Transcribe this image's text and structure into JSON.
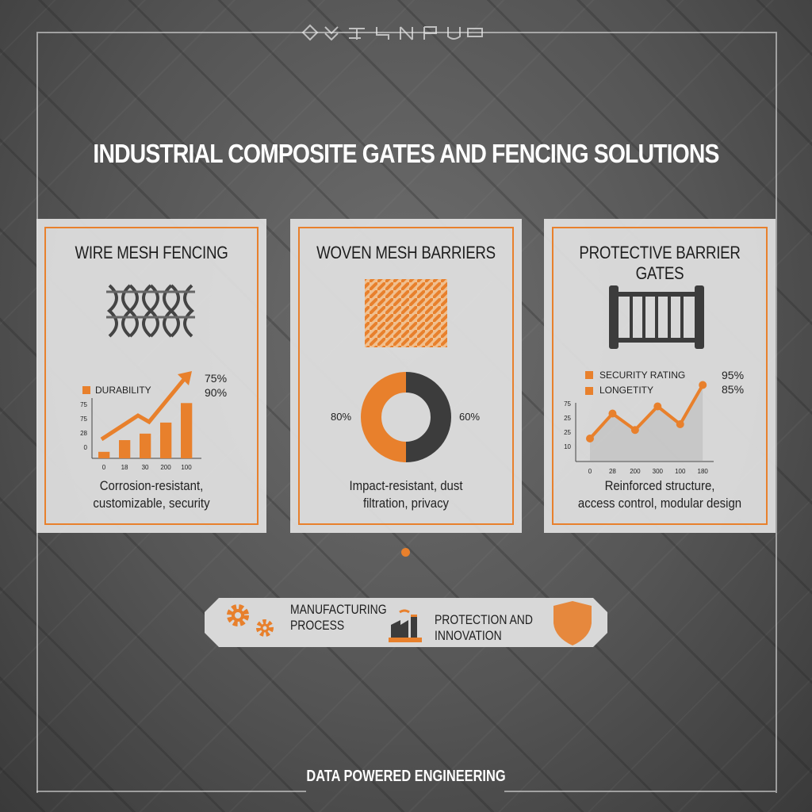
{
  "logo_text": "garbled logo lettering",
  "title": "INDUSTRIAL COMPOSITE GATES AND FENCING SOLUTIONS",
  "cards": [
    {
      "title": "WIRE MESH FENCING",
      "icon": "wire-mesh-icon",
      "description_lines": [
        "Corrosion-resistant,",
        "customizable, security"
      ]
    },
    {
      "title": "WOVEN MESH BARRIERS",
      "icon": "woven-mesh-icon",
      "description_lines": [
        "Impact-resistant, dust",
        "filtration, privacy"
      ]
    },
    {
      "title": "PROTECTIVE BARRIER GATES",
      "icon": "gate-icon",
      "description_lines": [
        "Reinforced structure,",
        "access control, modular design"
      ]
    }
  ],
  "bottom_bar": {
    "item1": {
      "icon": "gears-icon",
      "label_lines": [
        "MANUFACTURING",
        "PROCESS"
      ]
    },
    "item2": {
      "icon": "factory-icon",
      "label": "PROTECTION AND INNOVATION",
      "badge_icon": "shield-icon"
    }
  },
  "footer": "DATA POWERED ENGINEERING",
  "colors": {
    "accent": "#e8802c",
    "dark": "#3c3c3c",
    "card": "#e1e1e1"
  },
  "chart_data": [
    {
      "type": "bar",
      "legend": [
        "DURABILITY"
      ],
      "annotations": [
        "75%",
        "90%"
      ],
      "categories": [
        "0",
        "18",
        "30",
        "200",
        "100"
      ],
      "values": [
        10,
        28,
        38,
        55,
        85
      ],
      "yticks": [
        "0",
        "28",
        "75",
        "75"
      ],
      "trend_arrow": true,
      "ylim": [
        0,
        100
      ]
    },
    {
      "type": "pie",
      "donut": true,
      "slices": [
        {
          "label": "80%",
          "value": 50,
          "color": "#e8802c"
        },
        {
          "label": "60%",
          "value": 50,
          "color": "#3c3c3c"
        }
      ]
    },
    {
      "type": "line",
      "legend": [
        "SECURITY RATING",
        "LONGETITY"
      ],
      "annotations": [
        "95%",
        "85%"
      ],
      "categories": [
        "0",
        "28",
        "200",
        "300",
        "100",
        "180"
      ],
      "values": [
        10,
        45,
        22,
        55,
        30,
        85
      ],
      "yticks": [
        "10",
        "25",
        "25",
        "75"
      ],
      "ylim": [
        0,
        100
      ]
    }
  ]
}
